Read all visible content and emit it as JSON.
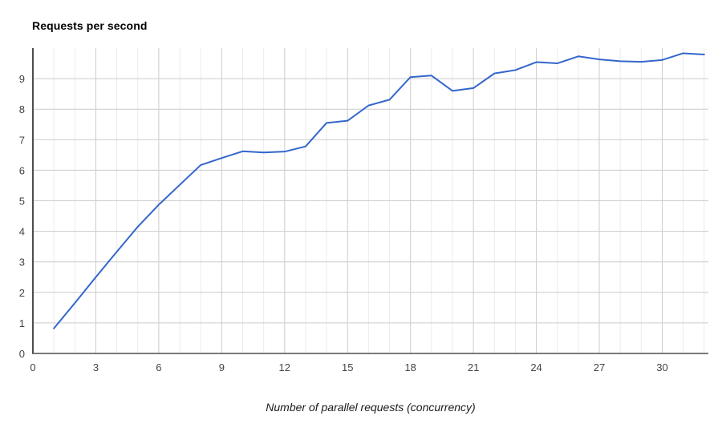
{
  "chart_data": {
    "type": "line",
    "title": "Requests per second",
    "xlabel": "Number of parallel requests (concurrency)",
    "ylabel": "",
    "x": [
      1,
      2,
      3,
      4,
      5,
      6,
      7,
      8,
      9,
      10,
      11,
      12,
      13,
      14,
      15,
      16,
      17,
      18,
      19,
      20,
      21,
      22,
      23,
      24,
      25,
      26,
      27,
      28,
      29,
      30,
      31,
      32
    ],
    "series": [
      {
        "name": "Requests per second",
        "values": [
          0.82,
          1.65,
          2.5,
          3.33,
          4.15,
          4.87,
          5.52,
          6.17,
          6.4,
          6.62,
          6.58,
          6.61,
          6.78,
          7.55,
          7.62,
          8.12,
          8.31,
          9.05,
          9.1,
          8.6,
          8.69,
          9.17,
          9.28,
          9.54,
          9.5,
          9.73,
          9.63,
          9.57,
          9.55,
          9.61,
          9.83,
          9.79
        ]
      }
    ],
    "xlim": [
      0,
      32.2
    ],
    "ylim": [
      0,
      10
    ],
    "x_major_ticks": [
      0,
      3,
      6,
      9,
      12,
      15,
      18,
      21,
      24,
      27,
      30
    ],
    "x_minor_step": 1,
    "y_ticks": [
      0,
      1,
      2,
      3,
      4,
      5,
      6,
      7,
      8,
      9
    ],
    "grid": true,
    "legend": "none",
    "line_color": "#3366cc",
    "line_width": 2,
    "major_grid_color": "#cccccc",
    "minor_grid_color": "#ebebeb",
    "axis_color": "#4d4d4d",
    "tick_label_color": "#444444",
    "background": "#ffffff"
  }
}
